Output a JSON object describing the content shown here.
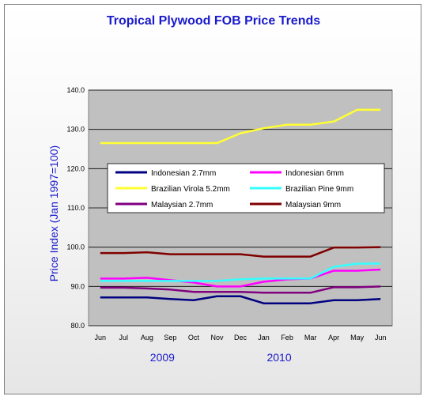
{
  "chart_data": {
    "type": "line",
    "title": "Tropical Plywood FOB Price Trends",
    "ylabel": "Price Index (Jan 1997=100)",
    "ylim": [
      80,
      140
    ],
    "yticks": [
      "80.0",
      "90.0",
      "100.0",
      "110.0",
      "120.0",
      "130.0",
      "140.0"
    ],
    "categories": [
      "Jun",
      "Jul",
      "Aug",
      "Sep",
      "Oct",
      "Nov",
      "Dec",
      "Jan",
      "Feb",
      "Mar",
      "Apr",
      "May",
      "Jun"
    ],
    "years": [
      "2009",
      "2010"
    ],
    "grid": true,
    "legend_position": "inside-middle",
    "series": [
      {
        "name": "Indonesian 2.7mm",
        "color": "#000080",
        "values": [
          87.2,
          87.2,
          87.2,
          86.8,
          86.5,
          87.5,
          87.5,
          85.7,
          85.7,
          85.7,
          86.5,
          86.5,
          86.8
        ]
      },
      {
        "name": "Indonesian 6mm",
        "color": "#ff00ff",
        "values": [
          92.0,
          92.0,
          92.2,
          91.6,
          91.0,
          90.0,
          90.0,
          91.2,
          91.8,
          92.0,
          94.0,
          94.0,
          94.3
        ]
      },
      {
        "name": "Brazilian Virola 5.2mm",
        "color": "#ffff33",
        "values": [
          126.5,
          126.5,
          126.5,
          126.5,
          126.5,
          126.5,
          129.0,
          130.3,
          131.2,
          131.2,
          132.0,
          135.0,
          135.0
        ]
      },
      {
        "name": "Brazilian Pine 9mm",
        "color": "#33ffff",
        "values": [
          91.4,
          91.4,
          91.4,
          91.4,
          91.4,
          91.4,
          91.8,
          92.0,
          92.0,
          92.0,
          95.0,
          95.8,
          95.8
        ]
      },
      {
        "name": "Malaysian 2.7mm",
        "color": "#800080",
        "values": [
          89.7,
          89.7,
          89.5,
          89.2,
          88.6,
          88.6,
          88.6,
          88.4,
          88.4,
          88.4,
          89.8,
          89.8,
          90.0
        ]
      },
      {
        "name": "Malaysian 9mm",
        "color": "#800000",
        "values": [
          98.5,
          98.5,
          98.7,
          98.2,
          98.2,
          98.2,
          98.2,
          97.6,
          97.6,
          97.6,
          99.9,
          99.9,
          100.0
        ]
      }
    ]
  }
}
